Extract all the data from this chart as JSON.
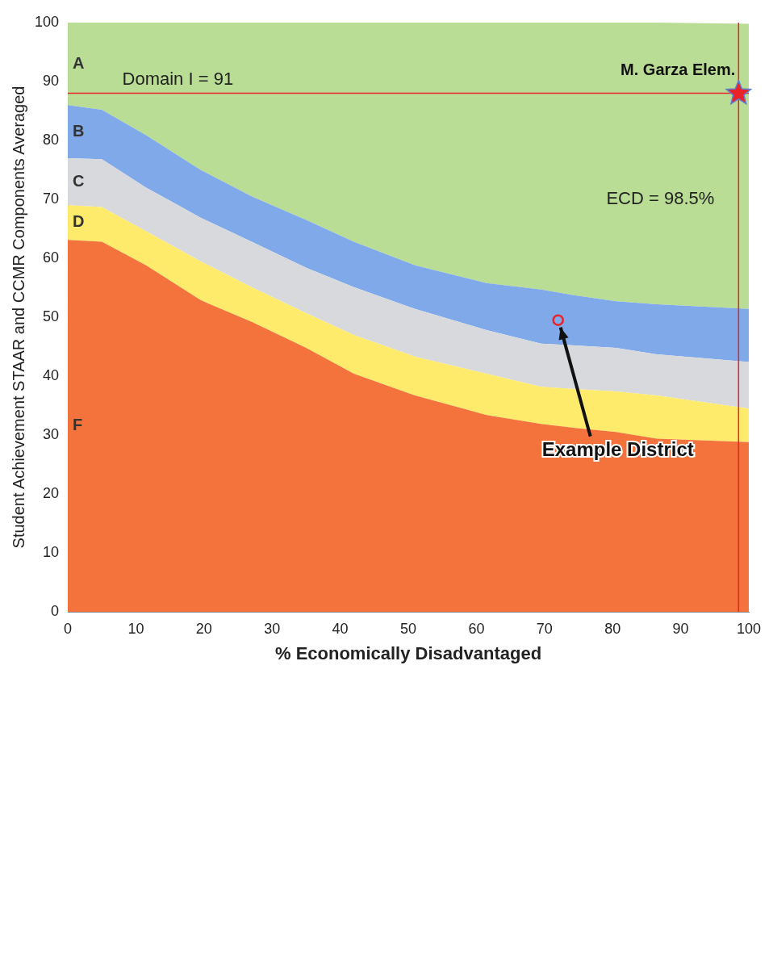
{
  "chart_data": {
    "type": "area",
    "stacked": true,
    "xlabel": "% Economically Disadvantaged",
    "ylabel": "Student Achievement STAAR and CCMR Components Averaged",
    "x": [
      0,
      5,
      11.5,
      19.5,
      27,
      35,
      42,
      51,
      61.5,
      69.5,
      74.5,
      80.5,
      86.5,
      100
    ],
    "series": [
      {
        "name": "F",
        "color": "#f4733c",
        "values": [
          63.1,
          62.8,
          58.8,
          52.9,
          49.2,
          44.8,
          40.4,
          36.7,
          33.4,
          31.9,
          31.2,
          30.5,
          29.4,
          28.8
        ]
      },
      {
        "name": "D",
        "color": "#ffeb6b",
        "values": [
          5.9,
          5.9,
          5.8,
          6.6,
          5.9,
          5.9,
          6.6,
          6.6,
          7.0,
          6.3,
          6.6,
          6.9,
          7.3,
          5.7
        ]
      },
      {
        "name": "C",
        "color": "#d8d9dd",
        "values": [
          8.0,
          8.1,
          7.4,
          7.4,
          7.7,
          7.7,
          8.1,
          8.1,
          7.4,
          7.3,
          7.4,
          7.4,
          7.0,
          7.9
        ]
      },
      {
        "name": "B",
        "color": "#7fa9e8",
        "values": [
          9.0,
          8.4,
          8.9,
          8.1,
          7.7,
          8.1,
          7.7,
          7.4,
          8.0,
          9.2,
          8.5,
          7.9,
          8.5,
          9.0
        ]
      },
      {
        "name": "A",
        "color": "#b9dd94",
        "values": [
          14.0,
          14.8,
          19.1,
          25.0,
          29.5,
          33.5,
          37.2,
          41.2,
          44.2,
          45.3,
          46.3,
          47.3,
          47.8,
          48.4
        ]
      },
      {
        "type": "scatter",
        "name": "M. Garza Elem.",
        "color": "#e8242a",
        "marker": "star",
        "x": [
          98.5
        ],
        "values": [
          88
        ]
      },
      {
        "type": "scatter",
        "color": "#e8242a",
        "marker": "circle",
        "x": [
          72
        ],
        "values": [
          49.5
        ]
      }
    ],
    "xlim": [
      0,
      100
    ],
    "xticks": [
      0,
      10,
      20,
      30,
      40,
      50,
      60,
      70,
      80,
      90,
      100
    ],
    "ylim": [
      0,
      100
    ],
    "yticks": [
      0,
      10,
      20,
      30,
      40,
      50,
      60,
      70,
      80,
      90,
      100
    ],
    "ref_lines": [
      {
        "axis": "y",
        "value": 88,
        "color": "#e8242a"
      },
      {
        "axis": "x",
        "value": 98.5,
        "label": "ECD = 98.5%",
        "color": "#e8242a"
      }
    ],
    "annotations": [
      "Domain I = 91",
      {
        "text": "Example District",
        "x": 72,
        "y": 49.5
      }
    ],
    "grid": false,
    "legend": false
  }
}
